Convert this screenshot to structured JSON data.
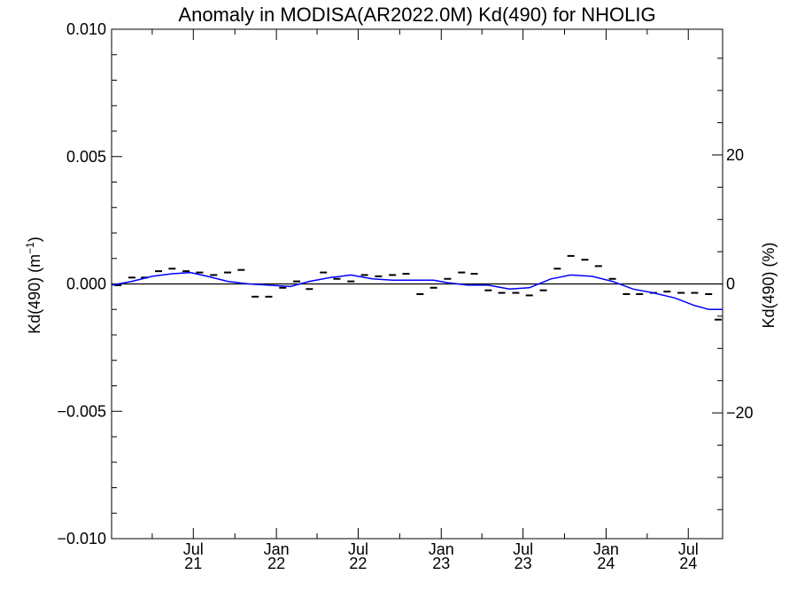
{
  "colors": {
    "background": "#ffffff",
    "axis": "#000000",
    "smooth_line": "#0000ff",
    "points": "#000000",
    "zero_line": "#000000"
  },
  "chart_data": {
    "type": "line",
    "title": "Anomaly in MODISA(AR2022.0M) Kd(490) for NHOLIG",
    "ylabel_left_text": "Kd(490) (m",
    "ylabel_left_sup": "−1",
    "ylabel_left_close": ")",
    "ylabel_right": "Kd(490) (%)",
    "xlim": [
      "2021-01-01",
      "2024-09-15"
    ],
    "ylim": [
      -0.01,
      0.01
    ],
    "y2lim": [
      -39.5,
      39.5
    ],
    "y_ticks": [
      -0.01,
      -0.005,
      0.0,
      0.005,
      0.01
    ],
    "y_tick_labels": [
      "−0.010",
      "−0.005",
      "0.000",
      "0.005",
      "0.010"
    ],
    "y2_ticks": [
      -20,
      0,
      20
    ],
    "y2_tick_labels": [
      "−20",
      "0",
      "20"
    ],
    "x_ticks": [
      {
        "date": "2021-07-01",
        "line1": "Jul",
        "line2": "21"
      },
      {
        "date": "2022-01-01",
        "line1": "Jan",
        "line2": "22"
      },
      {
        "date": "2022-07-01",
        "line1": "Jul",
        "line2": "22"
      },
      {
        "date": "2023-01-01",
        "line1": "Jan",
        "line2": "23"
      },
      {
        "date": "2023-07-01",
        "line1": "Jul",
        "line2": "23"
      },
      {
        "date": "2024-01-01",
        "line1": "Jan",
        "line2": "24"
      },
      {
        "date": "2024-07-01",
        "line1": "Jul",
        "line2": "24"
      }
    ],
    "x_minor_ticks": [
      "2021-04-01",
      "2021-10-01",
      "2022-04-01",
      "2022-10-01",
      "2023-04-01",
      "2023-10-01",
      "2024-04-01"
    ],
    "series": [
      {
        "kind": "monthly-points",
        "points": [
          {
            "x": "2021-01-15",
            "y": -5e-05
          },
          {
            "x": "2021-02-15",
            "y": 0.00025
          },
          {
            "x": "2021-03-15",
            "y": 0.00025
          },
          {
            "x": "2021-04-15",
            "y": 0.0005
          },
          {
            "x": "2021-05-15",
            "y": 0.0006
          },
          {
            "x": "2021-06-15",
            "y": 0.0005
          },
          {
            "x": "2021-07-15",
            "y": 0.00045
          },
          {
            "x": "2021-08-15",
            "y": 0.00035
          },
          {
            "x": "2021-09-15",
            "y": 0.00045
          },
          {
            "x": "2021-10-15",
            "y": 0.00055
          },
          {
            "x": "2021-11-15",
            "y": -0.0005
          },
          {
            "x": "2021-12-15",
            "y": -0.0005
          },
          {
            "x": "2022-01-15",
            "y": -0.00015
          },
          {
            "x": "2022-02-15",
            "y": 0.0001
          },
          {
            "x": "2022-03-15",
            "y": -0.0002
          },
          {
            "x": "2022-04-15",
            "y": 0.00045
          },
          {
            "x": "2022-05-15",
            "y": 0.0002
          },
          {
            "x": "2022-06-15",
            "y": 0.0001
          },
          {
            "x": "2022-07-15",
            "y": 0.00035
          },
          {
            "x": "2022-08-15",
            "y": 0.0003
          },
          {
            "x": "2022-09-15",
            "y": 0.00035
          },
          {
            "x": "2022-10-15",
            "y": 0.0004
          },
          {
            "x": "2022-11-15",
            "y": -0.0004
          },
          {
            "x": "2022-12-15",
            "y": -0.00015
          },
          {
            "x": "2023-01-15",
            "y": 0.0002
          },
          {
            "x": "2023-02-15",
            "y": 0.00045
          },
          {
            "x": "2023-03-15",
            "y": 0.0004
          },
          {
            "x": "2023-04-15",
            "y": -0.00025
          },
          {
            "x": "2023-05-15",
            "y": -0.00035
          },
          {
            "x": "2023-06-15",
            "y": -0.00035
          },
          {
            "x": "2023-07-15",
            "y": -0.00045
          },
          {
            "x": "2023-08-15",
            "y": -0.00025
          },
          {
            "x": "2023-09-15",
            "y": 0.0006
          },
          {
            "x": "2023-10-15",
            "y": 0.0011
          },
          {
            "x": "2023-11-15",
            "y": 0.00095
          },
          {
            "x": "2023-12-15",
            "y": 0.0007
          },
          {
            "x": "2024-01-15",
            "y": 0.0002
          },
          {
            "x": "2024-02-15",
            "y": -0.0004
          },
          {
            "x": "2024-03-15",
            "y": -0.0004
          },
          {
            "x": "2024-04-15",
            "y": -0.00035
          },
          {
            "x": "2024-05-15",
            "y": -0.0003
          },
          {
            "x": "2024-06-15",
            "y": -0.00035
          },
          {
            "x": "2024-07-15",
            "y": -0.00035
          },
          {
            "x": "2024-08-15",
            "y": -0.0004
          },
          {
            "x": "2024-09-05",
            "y": -0.0014
          }
        ]
      },
      {
        "kind": "smoothed-line",
        "points": [
          {
            "x": "2021-01-01",
            "y": -5e-05
          },
          {
            "x": "2021-02-15",
            "y": 0.0001
          },
          {
            "x": "2021-04-01",
            "y": 0.0003
          },
          {
            "x": "2021-05-15",
            "y": 0.0004
          },
          {
            "x": "2021-06-25",
            "y": 0.00045
          },
          {
            "x": "2021-08-01",
            "y": 0.0003
          },
          {
            "x": "2021-09-15",
            "y": 0.0001
          },
          {
            "x": "2021-11-01",
            "y": 0.0
          },
          {
            "x": "2021-12-15",
            "y": -5e-05
          },
          {
            "x": "2022-02-01",
            "y": -0.0001
          },
          {
            "x": "2022-03-15",
            "y": 0.0001
          },
          {
            "x": "2022-05-01",
            "y": 0.00025
          },
          {
            "x": "2022-06-15",
            "y": 0.00035
          },
          {
            "x": "2022-08-01",
            "y": 0.0002
          },
          {
            "x": "2022-09-15",
            "y": 0.00015
          },
          {
            "x": "2022-11-01",
            "y": 0.00015
          },
          {
            "x": "2022-12-15",
            "y": 0.00015
          },
          {
            "x": "2023-01-15",
            "y": 5e-05
          },
          {
            "x": "2023-03-01",
            "y": -5e-05
          },
          {
            "x": "2023-04-15",
            "y": -5e-05
          },
          {
            "x": "2023-06-01",
            "y": -0.0002
          },
          {
            "x": "2023-07-15",
            "y": -0.00015
          },
          {
            "x": "2023-09-01",
            "y": 0.0002
          },
          {
            "x": "2023-10-15",
            "y": 0.00035
          },
          {
            "x": "2023-12-01",
            "y": 0.0003
          },
          {
            "x": "2024-01-15",
            "y": 0.0001
          },
          {
            "x": "2024-03-01",
            "y": -0.0002
          },
          {
            "x": "2024-04-15",
            "y": -0.00035
          },
          {
            "x": "2024-06-01",
            "y": -0.00055
          },
          {
            "x": "2024-07-15",
            "y": -0.00085
          },
          {
            "x": "2024-08-15",
            "y": -0.001
          },
          {
            "x": "2024-09-15",
            "y": -0.001
          }
        ]
      }
    ]
  }
}
